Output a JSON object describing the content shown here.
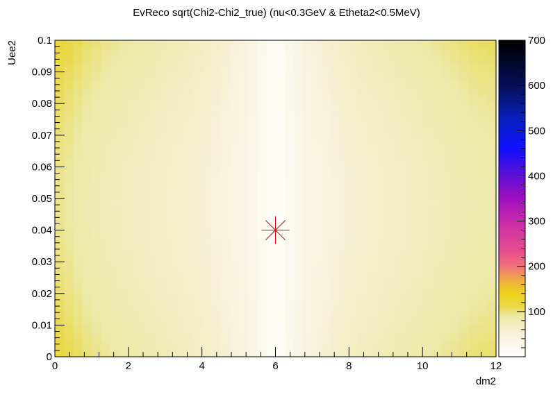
{
  "chart_data": {
    "type": "heatmap",
    "title": "EvReco sqrt(Chi2-Chi2_true) (nu<0.3GeV & Etheta2<0.5MeV)",
    "xlabel": "dm2",
    "ylabel": "Uee2",
    "xlim": [
      0,
      12
    ],
    "ylim": [
      0,
      0.1
    ],
    "zlim": [
      0,
      700
    ],
    "x_ticks": [
      "0",
      "2",
      "4",
      "6",
      "8",
      "10",
      "12"
    ],
    "y_ticks": [
      "0",
      "0.01",
      "0.02",
      "0.03",
      "0.04",
      "0.05",
      "0.06",
      "0.07",
      "0.08",
      "0.09",
      "0.1"
    ],
    "z_ticks": [
      "100",
      "200",
      "300",
      "400",
      "500",
      "600",
      "700"
    ],
    "x_tick_values": [
      0,
      2,
      4,
      6,
      8,
      10,
      12
    ],
    "y_tick_values": [
      0,
      0.01,
      0.02,
      0.03,
      0.04,
      0.05,
      0.06,
      0.07,
      0.08,
      0.09,
      0.1
    ],
    "z_tick_values": [
      100,
      200,
      300,
      400,
      500,
      600,
      700
    ],
    "x_bin_centers": [
      0.125,
      0.375,
      0.625,
      0.875,
      1.125,
      1.375,
      1.625,
      1.875,
      2.125,
      2.375,
      2.625,
      2.875,
      3.125,
      3.375,
      3.625,
      3.875,
      4.125,
      4.375,
      4.625,
      4.875,
      5.125,
      5.375,
      5.625,
      5.875,
      6.125,
      6.375,
      6.625,
      6.875,
      7.125,
      7.375,
      7.625,
      7.875,
      8.125,
      8.375,
      8.625,
      8.875,
      9.125,
      9.375,
      9.625,
      9.875,
      10.125,
      10.375,
      10.625,
      10.875,
      11.125,
      11.375,
      11.625,
      11.875
    ],
    "z_row_profile": [
      96,
      92,
      88,
      84,
      81,
      78,
      76,
      74,
      72,
      70,
      68,
      66,
      64,
      62,
      60,
      57,
      54,
      50,
      46,
      41,
      36,
      29,
      21,
      12,
      12,
      21,
      29,
      36,
      41,
      46,
      50,
      54,
      57,
      60,
      62,
      64,
      66,
      68,
      70,
      72,
      74,
      76,
      78,
      80,
      82,
      84,
      85,
      86
    ],
    "y_minimum_center": 0.048,
    "y_modulation": 0.2,
    "true_point": {
      "x": 6,
      "y": 0.04,
      "color": "#e00000"
    },
    "palette": [
      [
        0.0,
        "#ffffff"
      ],
      [
        0.07,
        "#f7f2dc"
      ],
      [
        0.13,
        "#ece9a8"
      ],
      [
        0.16,
        "#e9d84a"
      ],
      [
        0.2,
        "#eed41a"
      ],
      [
        0.24,
        "#f0b040"
      ],
      [
        0.29,
        "#f07080"
      ],
      [
        0.34,
        "#e74a90"
      ],
      [
        0.42,
        "#cc30a8"
      ],
      [
        0.5,
        "#a010c0"
      ],
      [
        0.58,
        "#5a10d8"
      ],
      [
        0.66,
        "#1010ff"
      ],
      [
        0.75,
        "#0820c0"
      ],
      [
        0.85,
        "#061060"
      ],
      [
        1.0,
        "#000000"
      ]
    ]
  }
}
